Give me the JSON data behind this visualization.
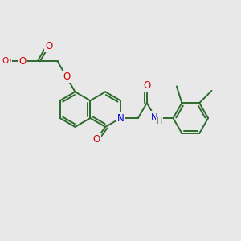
{
  "bg_color": "#e8e8e8",
  "bond_color": "#2d6b2d",
  "bond_width": 1.4,
  "atom_colors": {
    "O": "#cc0000",
    "N": "#0000cc",
    "H": "#777777",
    "C": "#2d6b2d"
  },
  "font_size": 8.5,
  "figsize": [
    3.0,
    3.0
  ],
  "dpi": 100
}
